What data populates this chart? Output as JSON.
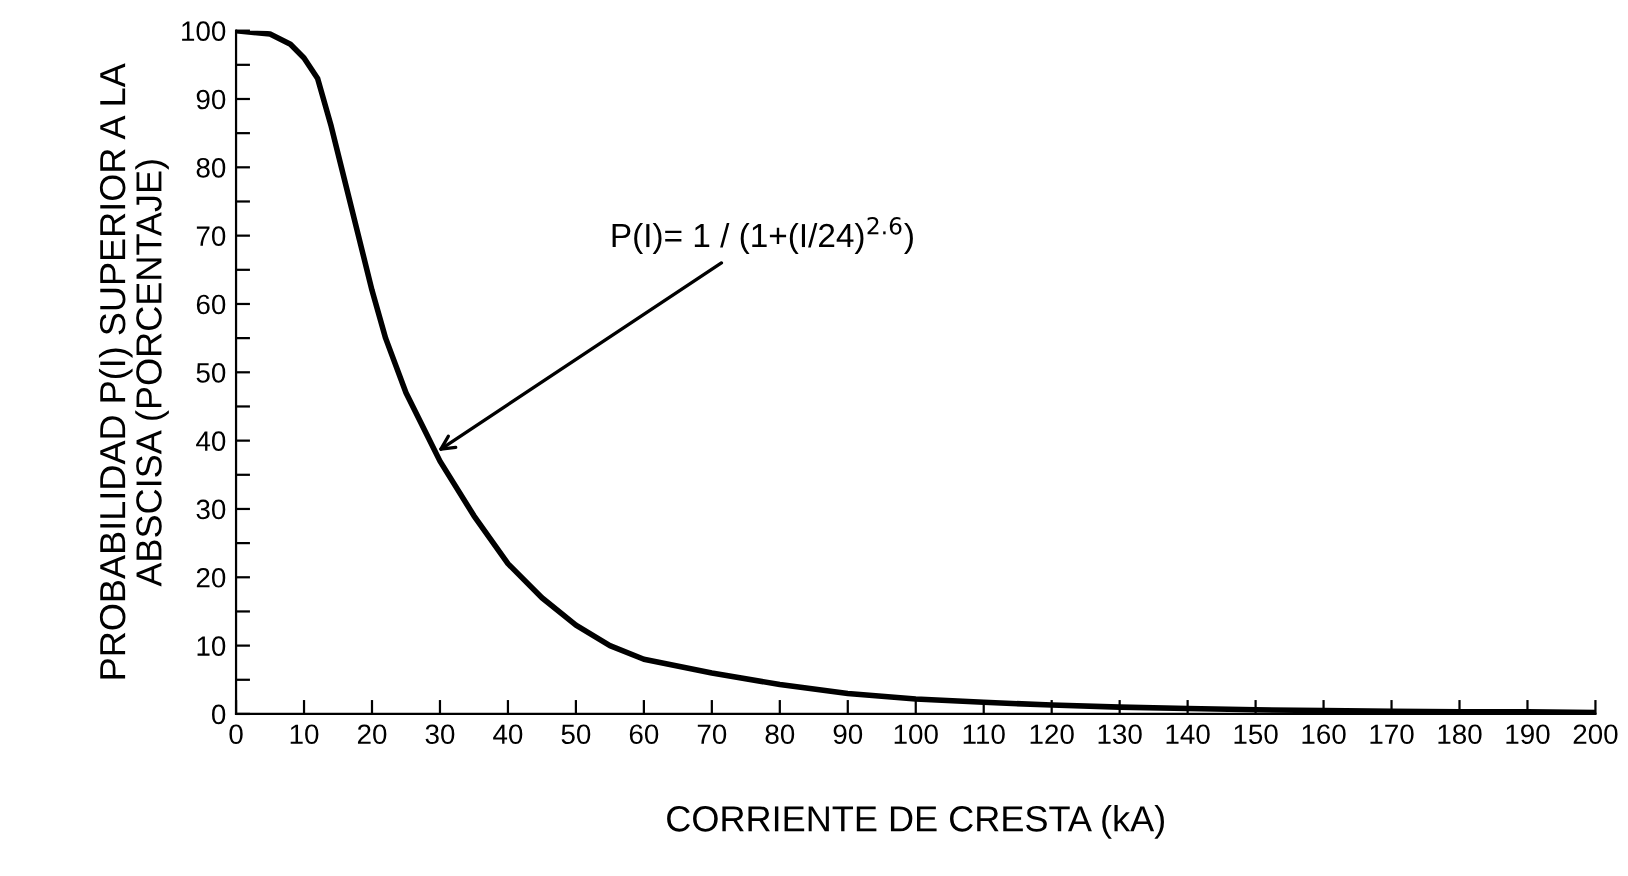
{
  "chart_data": {
    "type": "line",
    "xlabel": "CORRIENTE DE CRESTA (kA)",
    "ylabel": "PROBABILIDAD P(I) SUPERIOR A LA\nABSCISA (PORCENTAJE)",
    "x": [
      0,
      5,
      8,
      10,
      12,
      14,
      16,
      18,
      20,
      22,
      25,
      28,
      30,
      35,
      40,
      45,
      50,
      55,
      60,
      70,
      80,
      90,
      100,
      110,
      120,
      130,
      140,
      150,
      160,
      170,
      180,
      190,
      200
    ],
    "series": [
      {
        "color": "#000000",
        "values": [
          100,
          99.5,
          98,
          96,
          93,
          86,
          78,
          70,
          62,
          55,
          47,
          41,
          37,
          29,
          22,
          17,
          13,
          10,
          8,
          6,
          4.3,
          3,
          2.2,
          1.7,
          1.3,
          1,
          0.8,
          0.6,
          0.5,
          0.4,
          0.3,
          0.3,
          0.2
        ]
      }
    ],
    "xlim": [
      0,
      200
    ],
    "xticks": [
      0,
      10,
      20,
      30,
      40,
      50,
      60,
      70,
      80,
      90,
      100,
      110,
      120,
      130,
      140,
      150,
      160,
      170,
      180,
      190,
      200
    ],
    "ylim": [
      0,
      100
    ],
    "yticks": [
      0,
      {
        "value": 5,
        "label": null
      },
      10,
      {
        "value": 15,
        "label": null
      },
      20,
      {
        "value": 25,
        "label": null
      },
      30,
      {
        "value": 35,
        "label": null
      },
      40,
      {
        "value": 45,
        "label": null
      },
      50,
      {
        "value": 55,
        "label": null
      },
      60,
      {
        "value": 65,
        "label": null
      },
      70,
      {
        "value": 75,
        "label": null
      },
      80,
      {
        "value": 85,
        "label": null
      },
      90,
      {
        "value": 95,
        "label": null
      },
      100
    ],
    "annotations": [
      {
        "text": "P(I)= 1 / (1+(I/24)$^{2.6}$)",
        "x": 29,
        "y": 38
      }
    ],
    "grid": false,
    "marker": "none",
    "line_style": "solid"
  }
}
